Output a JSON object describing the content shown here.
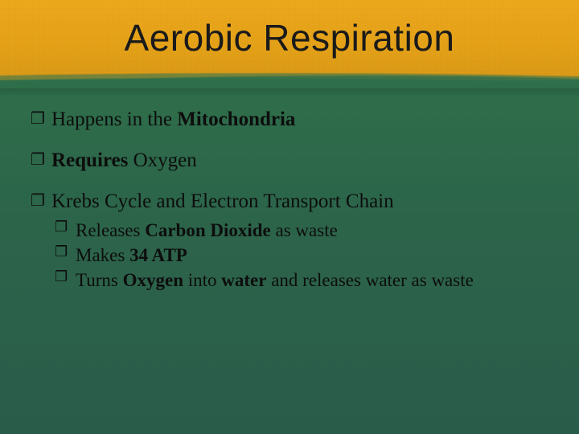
{
  "colors": {
    "title_text": "#1a1a1a",
    "body_text": "#0d0d0d",
    "bg_top_start": "#e8a92a",
    "bg_top_end": "#cd9322",
    "bg_bottom_start": "#2e6e4a",
    "bg_bottom_end": "#2a5c4a"
  },
  "typography": {
    "title_fontsize": 46,
    "lvl1_fontsize": 25,
    "lvl2_fontsize": 23,
    "title_family": "Arial",
    "body_family": "Georgia"
  },
  "bullet_glyph": "❐",
  "title": "Aerobic Respiration",
  "bullets": [
    {
      "parts": [
        {
          "t": "Happens in the ",
          "b": false
        },
        {
          "t": "Mitochondria",
          "b": true
        }
      ]
    },
    {
      "parts": [
        {
          "t": "Requires",
          "b": true
        },
        {
          "t": " Oxygen",
          "b": false
        }
      ]
    },
    {
      "parts": [
        {
          "t": "Krebs Cycle and Electron Transport Chain",
          "b": false
        }
      ],
      "sub": [
        {
          "parts": [
            {
              "t": "Releases ",
              "b": false
            },
            {
              "t": "Carbon Dioxide",
              "b": true
            },
            {
              "t": " as waste",
              "b": false
            }
          ]
        },
        {
          "parts": [
            {
              "t": "Makes ",
              "b": false
            },
            {
              "t": "34 ATP",
              "b": true
            }
          ]
        },
        {
          "parts": [
            {
              "t": "Turns ",
              "b": false
            },
            {
              "t": "Oxygen",
              "b": true
            },
            {
              "t": " into ",
              "b": false
            },
            {
              "t": "water",
              "b": true
            },
            {
              "t": " and releases water as waste",
              "b": false
            }
          ]
        }
      ]
    }
  ]
}
